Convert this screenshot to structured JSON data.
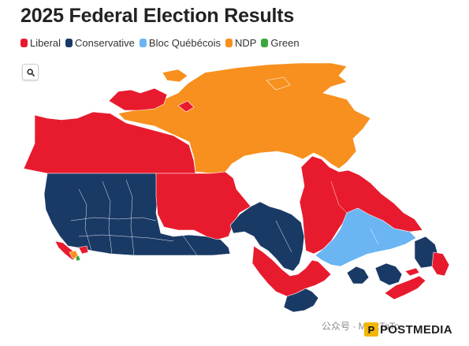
{
  "title": "2025 Federal Election Results",
  "legend": [
    {
      "label": "Liberal",
      "color": "#e81b2e"
    },
    {
      "label": "Conservative",
      "color": "#1a3a66"
    },
    {
      "label": "Bloc Québécois",
      "color": "#6bb5f2"
    },
    {
      "label": "NDP",
      "color": "#f7901e"
    },
    {
      "label": "Green",
      "color": "#3aa93a"
    }
  ],
  "map": {
    "search_icon": "search-icon",
    "region_colors": {
      "liberal": "#e81b2e",
      "conservative": "#1a3a66",
      "bloc": "#6bb5f2",
      "ndp": "#f7901e",
      "green": "#3aa93a"
    }
  },
  "footer": {
    "watermark": "公众号 · MeetToTo",
    "brand": "POSTMEDIA",
    "brand_icon": "postmedia-logo-icon"
  }
}
